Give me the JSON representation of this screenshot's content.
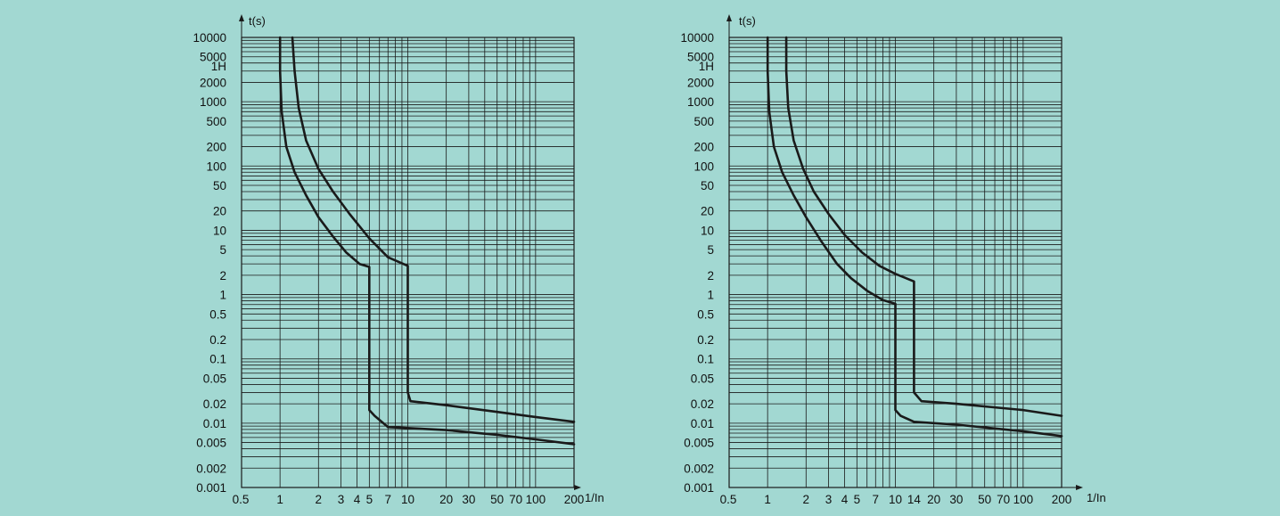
{
  "background_color": "#a2d8d2",
  "line_color": "#1a1a1a",
  "chart_data": [
    {
      "type": "line",
      "ylabel": "t(s)",
      "xlabel": "1/In",
      "x_scale": "log",
      "y_scale": "log",
      "xlim": [
        1,
        200
      ],
      "ylim": [
        0.001,
        10000
      ],
      "grid": true,
      "x_ticks": [
        {
          "label": "0.5",
          "value": 0.5
        },
        {
          "label": "1",
          "value": 1
        },
        {
          "label": "2",
          "value": 2
        },
        {
          "label": "3",
          "value": 3
        },
        {
          "label": "4",
          "value": 4
        },
        {
          "label": "5",
          "value": 5
        },
        {
          "label": "7",
          "value": 7
        },
        {
          "label": "10",
          "value": 10
        },
        {
          "label": "20",
          "value": 20
        },
        {
          "label": "30",
          "value": 30
        },
        {
          "label": "50",
          "value": 50
        },
        {
          "label": "70",
          "value": 70
        },
        {
          "label": "100",
          "value": 100
        },
        {
          "label": "200",
          "value": 200
        }
      ],
      "y_ticks": [
        {
          "label": "10000",
          "value": 10000
        },
        {
          "label": "5000",
          "value": 5000
        },
        {
          "label": "1H",
          "value": 3600
        },
        {
          "label": "2000",
          "value": 2000
        },
        {
          "label": "1000",
          "value": 1000
        },
        {
          "label": "500",
          "value": 500
        },
        {
          "label": "200",
          "value": 200
        },
        {
          "label": "100",
          "value": 100
        },
        {
          "label": "50",
          "value": 50
        },
        {
          "label": "20",
          "value": 20
        },
        {
          "label": "10",
          "value": 10
        },
        {
          "label": "5",
          "value": 5
        },
        {
          "label": "2",
          "value": 2
        },
        {
          "label": "1",
          "value": 1
        },
        {
          "label": "0.5",
          "value": 0.5
        },
        {
          "label": "0.2",
          "value": 0.2
        },
        {
          "label": "0.1",
          "value": 0.1
        },
        {
          "label": "0.05",
          "value": 0.05
        },
        {
          "label": "0.02",
          "value": 0.02
        },
        {
          "label": "0.01",
          "value": 0.01
        },
        {
          "label": "0.005",
          "value": 0.005
        },
        {
          "label": "0.002",
          "value": 0.002
        },
        {
          "label": "0.001",
          "value": 0.001
        }
      ],
      "series": [
        {
          "x": [
            1.0,
            1.0,
            1.03,
            1.12,
            1.3,
            1.6,
            2.0,
            2.6,
            3.3,
            4.2,
            5.0,
            5.0,
            5.5,
            7.0,
            20,
            50,
            100,
            200
          ],
          "y": [
            10000,
            3000,
            700,
            200,
            80,
            35,
            16,
            8,
            4.5,
            3.0,
            2.7,
            0.016,
            0.013,
            0.0087,
            0.0078,
            0.0066,
            0.0056,
            0.0047
          ]
        },
        {
          "x": [
            1.25,
            1.3,
            1.4,
            1.6,
            2.0,
            2.6,
            3.5,
            5.0,
            7.0,
            10.0,
            10.0,
            10.5,
            20,
            50,
            100,
            200
          ],
          "y": [
            10000,
            3000,
            800,
            250,
            90,
            40,
            18,
            7.5,
            3.8,
            2.8,
            0.03,
            0.022,
            0.019,
            0.015,
            0.0125,
            0.0105
          ]
        }
      ]
    },
    {
      "type": "line",
      "ylabel": "t(s)",
      "xlabel": "1/In",
      "x_scale": "log",
      "y_scale": "log",
      "xlim": [
        1,
        200
      ],
      "ylim": [
        0.001,
        10000
      ],
      "grid": true,
      "x_ticks": [
        {
          "label": "0.5",
          "value": 0.5
        },
        {
          "label": "1",
          "value": 1
        },
        {
          "label": "2",
          "value": 2
        },
        {
          "label": "3",
          "value": 3
        },
        {
          "label": "4",
          "value": 4
        },
        {
          "label": "5",
          "value": 5
        },
        {
          "label": "7",
          "value": 7
        },
        {
          "label": "10",
          "value": 10
        },
        {
          "label": "14",
          "value": 14
        },
        {
          "label": "20",
          "value": 20
        },
        {
          "label": "30",
          "value": 30
        },
        {
          "label": "50",
          "value": 50
        },
        {
          "label": "70",
          "value": 70
        },
        {
          "label": "100",
          "value": 100
        },
        {
          "label": "200",
          "value": 200
        }
      ],
      "y_ticks": [
        {
          "label": "10000",
          "value": 10000
        },
        {
          "label": "5000",
          "value": 5000
        },
        {
          "label": "1H",
          "value": 3600
        },
        {
          "label": "2000",
          "value": 2000
        },
        {
          "label": "1000",
          "value": 1000
        },
        {
          "label": "500",
          "value": 500
        },
        {
          "label": "200",
          "value": 200
        },
        {
          "label": "100",
          "value": 100
        },
        {
          "label": "50",
          "value": 50
        },
        {
          "label": "20",
          "value": 20
        },
        {
          "label": "10",
          "value": 10
        },
        {
          "label": "5",
          "value": 5
        },
        {
          "label": "2",
          "value": 2
        },
        {
          "label": "1",
          "value": 1
        },
        {
          "label": "0.5",
          "value": 0.5
        },
        {
          "label": "0.2",
          "value": 0.2
        },
        {
          "label": "0.1",
          "value": 0.1
        },
        {
          "label": "0.05",
          "value": 0.05
        },
        {
          "label": "0.02",
          "value": 0.02
        },
        {
          "label": "0.01",
          "value": 0.01
        },
        {
          "label": "0.005",
          "value": 0.005
        },
        {
          "label": "0.002",
          "value": 0.002
        },
        {
          "label": "0.001",
          "value": 0.001
        }
      ],
      "series": [
        {
          "x": [
            1.0,
            1.0,
            1.03,
            1.12,
            1.3,
            1.6,
            2.0,
            2.6,
            3.5,
            4.5,
            6.0,
            8.0,
            10.0,
            10.0,
            11.0,
            14.0,
            30,
            100,
            200
          ],
          "y": [
            10000,
            3000,
            700,
            200,
            80,
            35,
            16,
            7,
            3,
            1.8,
            1.15,
            0.82,
            0.72,
            0.016,
            0.013,
            0.0105,
            0.0095,
            0.0075,
            0.0063
          ]
        },
        {
          "x": [
            1.4,
            1.4,
            1.45,
            1.6,
            1.9,
            2.3,
            3.0,
            4.0,
            5.5,
            7.5,
            10.0,
            14.0,
            14.0,
            16.0,
            30,
            100,
            200
          ],
          "y": [
            10000,
            3000,
            800,
            250,
            90,
            40,
            18,
            8.5,
            4.5,
            2.8,
            2.1,
            1.6,
            0.03,
            0.022,
            0.02,
            0.016,
            0.013
          ]
        }
      ]
    }
  ]
}
